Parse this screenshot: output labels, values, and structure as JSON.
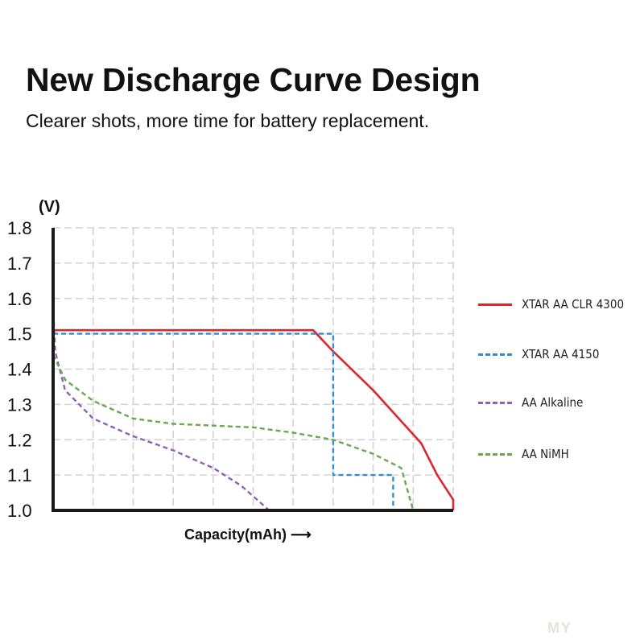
{
  "header": {
    "title": "New Discharge Curve Design",
    "subtitle": "Clearer shots, more time for battery replacement."
  },
  "watermark": "MY",
  "chart_data": {
    "type": "line",
    "title": "",
    "xlabel": "Capacity(mAh) ⟶",
    "ylabel": "(V)",
    "xlim": [
      0,
      10
    ],
    "ylim": [
      1.0,
      1.8
    ],
    "yticks": [
      "1.8",
      "1.7",
      "1.6",
      "1.5",
      "1.4",
      "1.3",
      "1.2",
      "1.1",
      "1.0"
    ],
    "x_tick_labels": "none",
    "grid": true,
    "legend_position": "right",
    "series": [
      {
        "name": "XTAR AA CLR 4300",
        "color": "#e0252a",
        "style": "solid",
        "x": [
          0,
          6.5,
          7.0,
          8.0,
          9.2,
          9.6,
          10.0,
          10.0
        ],
        "y": [
          1.51,
          1.51,
          1.45,
          1.34,
          1.19,
          1.1,
          1.03,
          1.0
        ]
      },
      {
        "name": "XTAR AA 4150",
        "color": "#2e8fd6",
        "style": "dashed",
        "x": [
          0,
          7.0,
          7.0,
          8.5,
          8.5
        ],
        "y": [
          1.5,
          1.5,
          1.1,
          1.1,
          1.0
        ]
      },
      {
        "name": "AA Alkaline",
        "color": "#8e60b8",
        "style": "dashed",
        "x": [
          0,
          0.05,
          0.3,
          1.0,
          2.0,
          3.0,
          4.0,
          4.7,
          5.4
        ],
        "y": [
          1.58,
          1.45,
          1.34,
          1.26,
          1.21,
          1.17,
          1.12,
          1.07,
          1.0
        ]
      },
      {
        "name": "AA NiMH",
        "color": "#6aa84f",
        "style": "dashed",
        "x": [
          0,
          0.3,
          1.0,
          2.0,
          3.0,
          4.0,
          5.0,
          6.0,
          7.0,
          8.0,
          8.7,
          9.0
        ],
        "y": [
          1.44,
          1.37,
          1.31,
          1.26,
          1.245,
          1.24,
          1.235,
          1.22,
          1.2,
          1.16,
          1.12,
          1.0
        ]
      }
    ]
  }
}
